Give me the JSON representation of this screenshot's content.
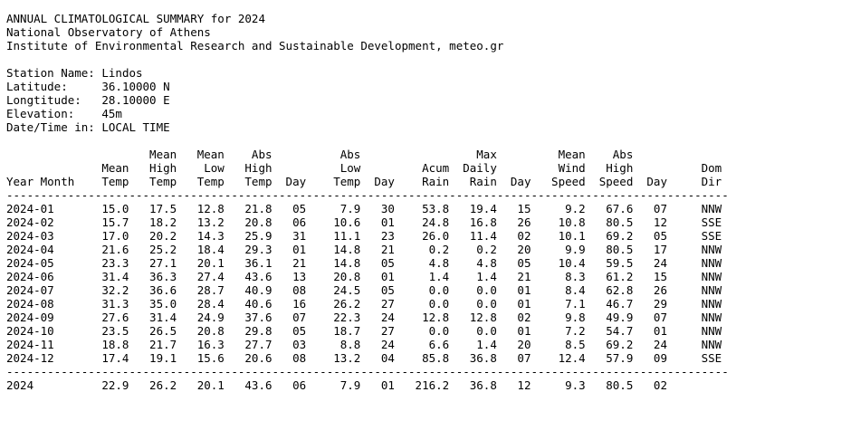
{
  "header": {
    "title": "ANNUAL CLIMATOLOGICAL SUMMARY for 2024",
    "org": "National Observatory of Athens",
    "institute": "Institute of Environmental Research and Sustainable Development, meteo.gr"
  },
  "station": {
    "name_label": "Station Name:",
    "name": "Lindos",
    "lat_label": "Latitude:",
    "latitude": "36.10000 N",
    "lon_label": "Longtitude:",
    "longitude": "28.10000 E",
    "elev_label": "Elevation:",
    "elevation": "45m",
    "time_label": "Date/Time in:",
    "time_zone": "LOCAL TIME"
  },
  "table": {
    "header_lines": [
      [
        "",
        "",
        "Mean",
        "Mean",
        "Abs",
        "",
        "Abs",
        "",
        "",
        "Max",
        "",
        "Mean",
        "Abs",
        "",
        ""
      ],
      [
        "",
        "Mean",
        "High",
        "Low",
        "High",
        "",
        "Low",
        "",
        "Acum",
        "Daily",
        "",
        "Wind",
        "High",
        "",
        "Dom"
      ],
      [
        "Year Month",
        "Temp",
        "Temp",
        "Temp",
        "Temp",
        "Day",
        "Temp",
        "Day",
        "Rain",
        "Rain",
        "Day",
        "Speed",
        "Speed",
        "Day",
        "Dir"
      ]
    ],
    "rows": [
      [
        "2024-01",
        "15.0",
        "17.5",
        "12.8",
        "21.8",
        "05",
        "7.9",
        "30",
        "53.8",
        "19.4",
        "15",
        "9.2",
        "67.6",
        "07",
        "NNW"
      ],
      [
        "2024-02",
        "15.7",
        "18.2",
        "13.2",
        "20.8",
        "06",
        "10.6",
        "01",
        "24.8",
        "16.8",
        "26",
        "10.8",
        "80.5",
        "12",
        "SSE"
      ],
      [
        "2024-03",
        "17.0",
        "20.2",
        "14.3",
        "25.9",
        "31",
        "11.1",
        "23",
        "26.0",
        "11.4",
        "02",
        "10.1",
        "69.2",
        "05",
        "SSE"
      ],
      [
        "2024-04",
        "21.6",
        "25.2",
        "18.4",
        "29.3",
        "01",
        "14.8",
        "21",
        "0.2",
        "0.2",
        "20",
        "9.9",
        "80.5",
        "17",
        "NNW"
      ],
      [
        "2024-05",
        "23.3",
        "27.1",
        "20.1",
        "36.1",
        "21",
        "14.8",
        "05",
        "4.8",
        "4.8",
        "05",
        "10.4",
        "59.5",
        "24",
        "NNW"
      ],
      [
        "2024-06",
        "31.4",
        "36.3",
        "27.4",
        "43.6",
        "13",
        "20.8",
        "01",
        "1.4",
        "1.4",
        "21",
        "8.3",
        "61.2",
        "15",
        "NNW"
      ],
      [
        "2024-07",
        "32.2",
        "36.6",
        "28.7",
        "40.9",
        "08",
        "24.5",
        "05",
        "0.0",
        "0.0",
        "01",
        "8.4",
        "62.8",
        "26",
        "NNW"
      ],
      [
        "2024-08",
        "31.3",
        "35.0",
        "28.4",
        "40.6",
        "16",
        "26.2",
        "27",
        "0.0",
        "0.0",
        "01",
        "7.1",
        "46.7",
        "29",
        "NNW"
      ],
      [
        "2024-09",
        "27.6",
        "31.4",
        "24.9",
        "37.6",
        "07",
        "22.3",
        "24",
        "12.8",
        "12.8",
        "02",
        "9.8",
        "49.9",
        "07",
        "NNW"
      ],
      [
        "2024-10",
        "23.5",
        "26.5",
        "20.8",
        "29.8",
        "05",
        "18.7",
        "27",
        "0.0",
        "0.0",
        "01",
        "7.2",
        "54.7",
        "01",
        "NNW"
      ],
      [
        "2024-11",
        "18.8",
        "21.7",
        "16.3",
        "27.7",
        "03",
        "8.8",
        "24",
        "6.6",
        "1.4",
        "20",
        "8.5",
        "69.2",
        "24",
        "NNW"
      ],
      [
        "2024-12",
        "17.4",
        "19.1",
        "15.6",
        "20.6",
        "08",
        "13.2",
        "04",
        "85.8",
        "36.8",
        "07",
        "12.4",
        "57.9",
        "09",
        "SSE"
      ]
    ],
    "summary": [
      "2024",
      "22.9",
      "26.2",
      "20.1",
      "43.6",
      "06",
      "7.9",
      "01",
      "216.2",
      "36.8",
      "12",
      "9.3",
      "80.5",
      "02",
      ""
    ]
  }
}
